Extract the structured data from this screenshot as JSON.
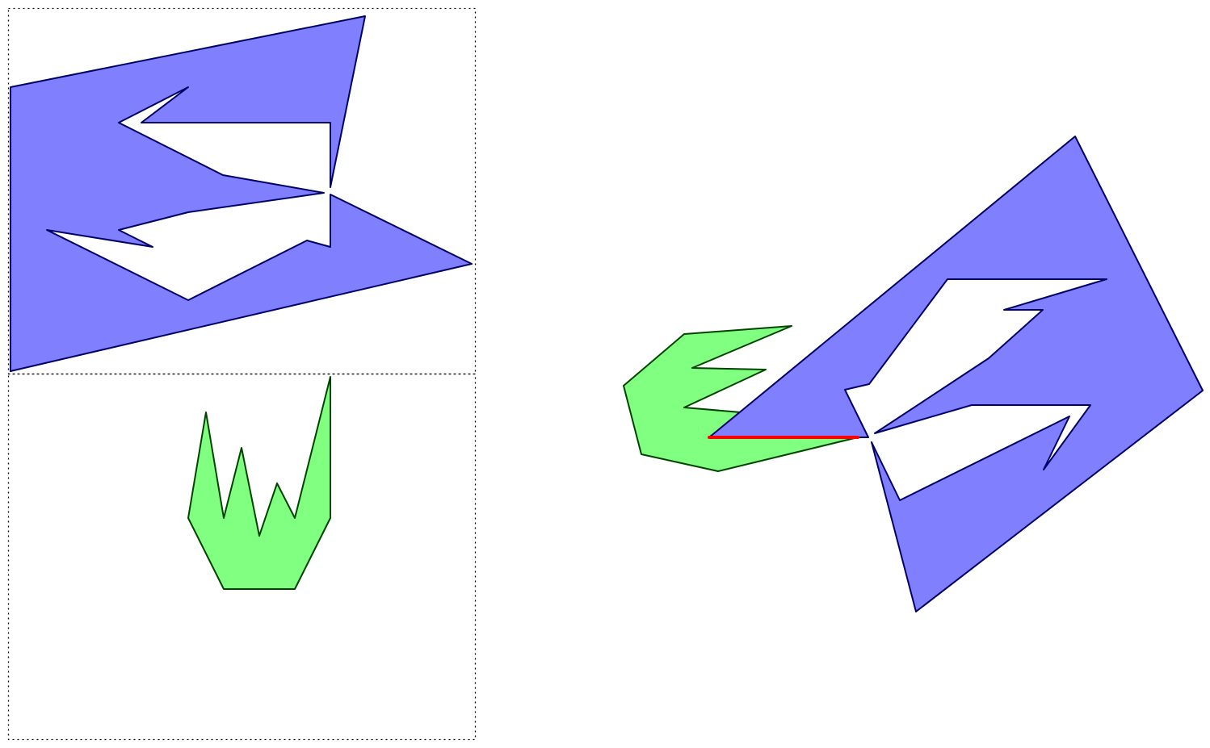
{
  "colors": {
    "blue_fill": "#8080ff",
    "blue_stroke": "#000066",
    "green_fill": "#80ff80",
    "green_stroke": "#004400",
    "highlight": "#ff0000",
    "frame": "#000000"
  }
}
